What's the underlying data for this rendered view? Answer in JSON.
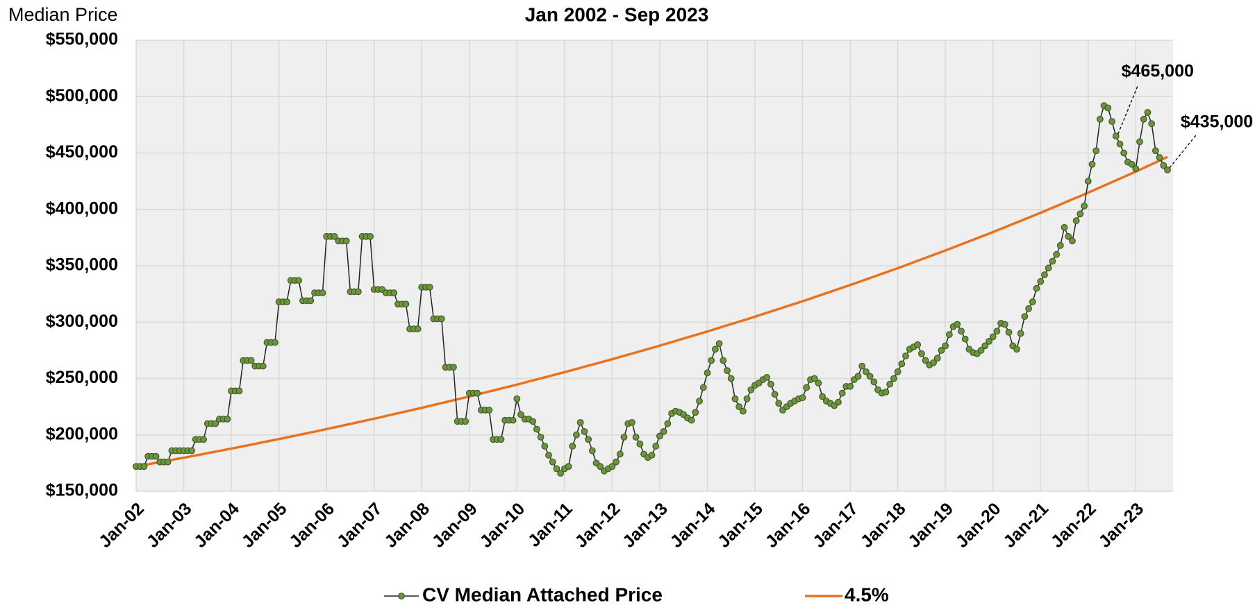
{
  "chart_data": {
    "type": "line",
    "title": "Jan 2002 - Sep 2023",
    "ylabel": "Median Price",
    "categories": [
      "Jan-02",
      null,
      null,
      null,
      null,
      null,
      null,
      null,
      null,
      null,
      null,
      null,
      "Jan-03",
      null,
      null,
      null,
      null,
      null,
      null,
      null,
      null,
      null,
      null,
      null,
      "Jan-04",
      null,
      null,
      null,
      null,
      null,
      null,
      null,
      null,
      null,
      null,
      null,
      "Jan-05",
      null,
      null,
      null,
      null,
      null,
      null,
      null,
      null,
      null,
      null,
      null,
      "Jan-06",
      null,
      null,
      null,
      null,
      null,
      null,
      null,
      null,
      null,
      null,
      null,
      "Jan-07",
      null,
      null,
      null,
      null,
      null,
      null,
      null,
      null,
      null,
      null,
      null,
      "Jan-08",
      null,
      null,
      null,
      null,
      null,
      null,
      null,
      null,
      null,
      null,
      null,
      "Jan-09",
      null,
      null,
      null,
      null,
      null,
      null,
      null,
      null,
      null,
      null,
      null,
      "Jan-10",
      null,
      null,
      null,
      null,
      null,
      null,
      null,
      null,
      null,
      null,
      null,
      "Jan-11",
      null,
      null,
      null,
      null,
      null,
      null,
      null,
      null,
      null,
      null,
      null,
      "Jan-12",
      null,
      null,
      null,
      null,
      null,
      null,
      null,
      null,
      null,
      null,
      null,
      "Jan-13",
      null,
      null,
      null,
      null,
      null,
      null,
      null,
      null,
      null,
      null,
      null,
      "Jan-14",
      null,
      null,
      null,
      null,
      null,
      null,
      null,
      null,
      null,
      null,
      null,
      "Jan-15",
      null,
      null,
      null,
      null,
      null,
      null,
      null,
      null,
      null,
      null,
      null,
      "Jan-16",
      null,
      null,
      null,
      null,
      null,
      null,
      null,
      null,
      null,
      null,
      null,
      "Jan-17",
      null,
      null,
      null,
      null,
      null,
      null,
      null,
      null,
      null,
      null,
      null,
      "Jan-18",
      null,
      null,
      null,
      null,
      null,
      null,
      null,
      null,
      null,
      null,
      null,
      "Jan-19",
      null,
      null,
      null,
      null,
      null,
      null,
      null,
      null,
      null,
      null,
      null,
      "Jan-20",
      null,
      null,
      null,
      null,
      null,
      null,
      null,
      null,
      null,
      null,
      null,
      "Jan-21",
      null,
      null,
      null,
      null,
      null,
      null,
      null,
      null,
      null,
      null,
      null,
      "Jan-22",
      null,
      null,
      null,
      null,
      null,
      null,
      null,
      null,
      null,
      null,
      null,
      "Jan-23",
      null,
      null,
      null,
      null,
      null,
      null,
      null,
      null
    ],
    "series": [
      {
        "name": "CV Median Attached Price",
        "color": "#222222",
        "marker_color": "#6f9440",
        "values": [
          172000,
          172000,
          172000,
          181000,
          181000,
          181000,
          176000,
          176000,
          176000,
          186000,
          186000,
          186000,
          186000,
          186000,
          186000,
          196000,
          196000,
          196000,
          210000,
          210000,
          210000,
          214000,
          214000,
          214000,
          239000,
          239000,
          239000,
          266000,
          266000,
          266000,
          261000,
          261000,
          261000,
          282000,
          282000,
          282000,
          318000,
          318000,
          318000,
          337000,
          337000,
          337000,
          319000,
          319000,
          319000,
          326000,
          326000,
          326000,
          376000,
          376000,
          376000,
          372000,
          372000,
          372000,
          327000,
          327000,
          327000,
          376000,
          376000,
          376000,
          329000,
          329000,
          329000,
          326000,
          326000,
          326000,
          316000,
          316000,
          316000,
          294000,
          294000,
          294000,
          331000,
          331000,
          331000,
          303000,
          303000,
          303000,
          260000,
          260000,
          260000,
          212000,
          212000,
          212000,
          237000,
          237000,
          237000,
          222000,
          222000,
          222000,
          196000,
          196000,
          196000,
          213000,
          213000,
          213000,
          232000,
          218000,
          214000,
          214000,
          212000,
          205000,
          198000,
          190000,
          182000,
          176000,
          170000,
          166000,
          170000,
          172000,
          190000,
          200000,
          211000,
          203000,
          196000,
          186000,
          175000,
          172000,
          168000,
          170000,
          172000,
          176000,
          183000,
          198000,
          210000,
          211000,
          198000,
          192000,
          183000,
          180000,
          182000,
          190000,
          199000,
          203000,
          210000,
          219000,
          221000,
          220000,
          218000,
          215000,
          213000,
          220000,
          230000,
          242000,
          255000,
          266000,
          276000,
          281000,
          266000,
          257000,
          250000,
          232000,
          225000,
          221000,
          232000,
          240000,
          244000,
          246000,
          249000,
          251000,
          245000,
          236000,
          228000,
          222000,
          225000,
          228000,
          230000,
          232000,
          233000,
          242000,
          249000,
          250000,
          246000,
          234000,
          230000,
          228000,
          226000,
          229000,
          237000,
          243000,
          243000,
          249000,
          252000,
          261000,
          256000,
          252000,
          247000,
          240000,
          237000,
          238000,
          245000,
          250000,
          256000,
          263000,
          270000,
          276000,
          278000,
          280000,
          272000,
          266000,
          262000,
          264000,
          268000,
          275000,
          279000,
          289000,
          296000,
          298000,
          292000,
          285000,
          276000,
          273000,
          272000,
          275000,
          279000,
          283000,
          287000,
          292000,
          299000,
          298000,
          291000,
          279000,
          276000,
          290000,
          305000,
          312000,
          318000,
          330000,
          336000,
          342000,
          348000,
          354000,
          360000,
          368000,
          384000,
          376000,
          372000,
          390000,
          396000,
          403000,
          425000,
          440000,
          452000,
          480000,
          492000,
          490000,
          478000,
          465000,
          458000,
          450000,
          442000,
          440000,
          436000,
          460000,
          480000,
          486000,
          476000,
          452000,
          446000,
          439000,
          435000
        ],
        "value_labels": {
          "247": "$465,000",
          "260": "$435,000"
        }
      },
      {
        "name": "4.5%",
        "color": "#e8731c",
        "values": [
          172000,
          172600,
          173300,
          173900,
          174600,
          175200,
          175900,
          176500,
          177200,
          177800,
          178500,
          179100,
          179700,
          180400,
          181100,
          181800,
          182400,
          183100,
          183800,
          184500,
          185100,
          185800,
          186500,
          187200,
          187800,
          188500,
          189200,
          190000,
          190600,
          191300,
          192000,
          192800,
          193500,
          194200,
          194900,
          195600,
          196300,
          197000,
          197800,
          198500,
          199200,
          200000,
          200700,
          201400,
          202200,
          202900,
          203600,
          204400,
          205100,
          205900,
          206700,
          207400,
          208200,
          209000,
          209700,
          210500,
          211300,
          212000,
          212800,
          213600,
          214300,
          215100,
          215900,
          216800,
          217600,
          218400,
          219200,
          220000,
          220800,
          221600,
          222400,
          223200,
          224000,
          224800,
          225700,
          226500,
          227400,
          228200,
          229000,
          229900,
          230700,
          231600,
          232400,
          233200,
          234100,
          234900,
          235800,
          236700,
          237600,
          238500,
          239300,
          240200,
          241100,
          242000,
          242800,
          243700,
          244600,
          245500,
          246400,
          247400,
          248300,
          249200,
          250100,
          251000,
          251900,
          252900,
          253800,
          254700,
          255600,
          256600,
          257500,
          258500,
          259400,
          260400,
          261400,
          262300,
          263300,
          264200,
          265200,
          266100,
          267100,
          268100,
          269100,
          270100,
          271100,
          272100,
          273100,
          274100,
          275100,
          276100,
          277100,
          278100,
          279100,
          280200,
          281200,
          282300,
          283300,
          284400,
          285400,
          286500,
          287500,
          288600,
          289600,
          290700,
          291700,
          292800,
          293900,
          295000,
          296100,
          297200,
          298300,
          299300,
          300400,
          301500,
          302600,
          303700,
          304800,
          306000,
          307100,
          308300,
          309400,
          310500,
          311700,
          312800,
          314000,
          315100,
          316200,
          317400,
          318500,
          319700,
          320900,
          322100,
          323300,
          324500,
          325700,
          326900,
          328100,
          329300,
          330500,
          331700,
          332900,
          334100,
          335400,
          336600,
          337900,
          339100,
          340400,
          341600,
          342900,
          344100,
          345400,
          346600,
          347800,
          349100,
          350400,
          351800,
          353100,
          354400,
          355700,
          357000,
          358300,
          359600,
          360900,
          362200,
          363500,
          364900,
          366200,
          367600,
          369000,
          370300,
          371700,
          373000,
          374400,
          375800,
          377100,
          378500,
          379900,
          381300,
          382700,
          384100,
          385600,
          387000,
          388400,
          389800,
          391300,
          392700,
          394100,
          395500,
          397000,
          398400,
          399900,
          401400,
          402900,
          404400,
          405900,
          407400,
          408900,
          410400,
          411800,
          413300,
          414800,
          416400,
          417900,
          419500,
          421000,
          422600,
          424100,
          425700,
          427300,
          428800,
          430400,
          431900,
          433500,
          435100,
          436700,
          438400,
          440000,
          441600,
          443200,
          444900,
          446500
        ]
      }
    ],
    "ylim": [
      150000,
      550000
    ],
    "yticks": [
      {
        "value": 150000,
        "label": "$150,000"
      },
      {
        "value": 200000,
        "label": "$200,000"
      },
      {
        "value": 250000,
        "label": "$250,000"
      },
      {
        "value": 300000,
        "label": "$300,000"
      },
      {
        "value": 350000,
        "label": "$350,000"
      },
      {
        "value": 400000,
        "label": "$400,000"
      },
      {
        "value": 450000,
        "label": "$450,000"
      },
      {
        "value": 500000,
        "label": "$500,000"
      },
      {
        "value": 550000,
        "label": "$550,000"
      }
    ],
    "grid": true,
    "legend": "bottom"
  }
}
